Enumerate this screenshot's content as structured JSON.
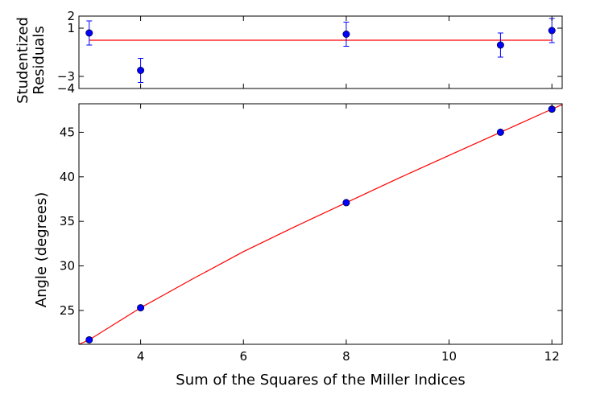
{
  "chart_data": [
    {
      "type": "scatter",
      "panel": "residuals",
      "ylabel": "Studentized\nResiduals",
      "xlim": [
        2.8,
        12.2
      ],
      "ylim": [
        -4,
        2
      ],
      "y_ticks": [
        2,
        1,
        -3,
        -4
      ],
      "x_ticks": [
        4,
        6,
        8,
        10,
        12
      ],
      "x_tick_labels_shown": false,
      "grid": false,
      "reference_line": {
        "y": 0,
        "color": "#ff0000"
      },
      "points": [
        {
          "x": 3,
          "y": 0.6,
          "err": 1.0
        },
        {
          "x": 4,
          "y": -2.5,
          "err": 1.0
        },
        {
          "x": 8,
          "y": 0.5,
          "err": 1.0
        },
        {
          "x": 11,
          "y": -0.4,
          "err": 1.0
        },
        {
          "x": 12,
          "y": 0.8,
          "err": 1.0
        }
      ],
      "point_color": "#0000ff"
    },
    {
      "type": "scatter",
      "panel": "fit",
      "xlabel": "Sum of the Squares of the Miller Indices",
      "ylabel": "Angle (degrees)",
      "xlim": [
        2.8,
        12.2
      ],
      "ylim": [
        21.2,
        48.2
      ],
      "x_ticks": [
        4,
        6,
        8,
        10,
        12
      ],
      "y_ticks": [
        25,
        30,
        35,
        40,
        45
      ],
      "grid": false,
      "points": [
        {
          "x": 3,
          "y": 21.7
        },
        {
          "x": 4,
          "y": 25.3
        },
        {
          "x": 8,
          "y": 37.1
        },
        {
          "x": 11,
          "y": 45.0
        },
        {
          "x": 12,
          "y": 47.6
        }
      ],
      "point_color": "#0000ff",
      "fit_curve": {
        "color": "#ff0000",
        "x": [
          2.8,
          3,
          3.5,
          4,
          5,
          6,
          7,
          8,
          9,
          10,
          11,
          12,
          12.2
        ],
        "y": [
          21.0,
          21.7,
          23.5,
          25.3,
          28.5,
          31.6,
          34.4,
          37.1,
          39.8,
          42.4,
          45.0,
          47.6,
          48.1
        ]
      }
    }
  ]
}
